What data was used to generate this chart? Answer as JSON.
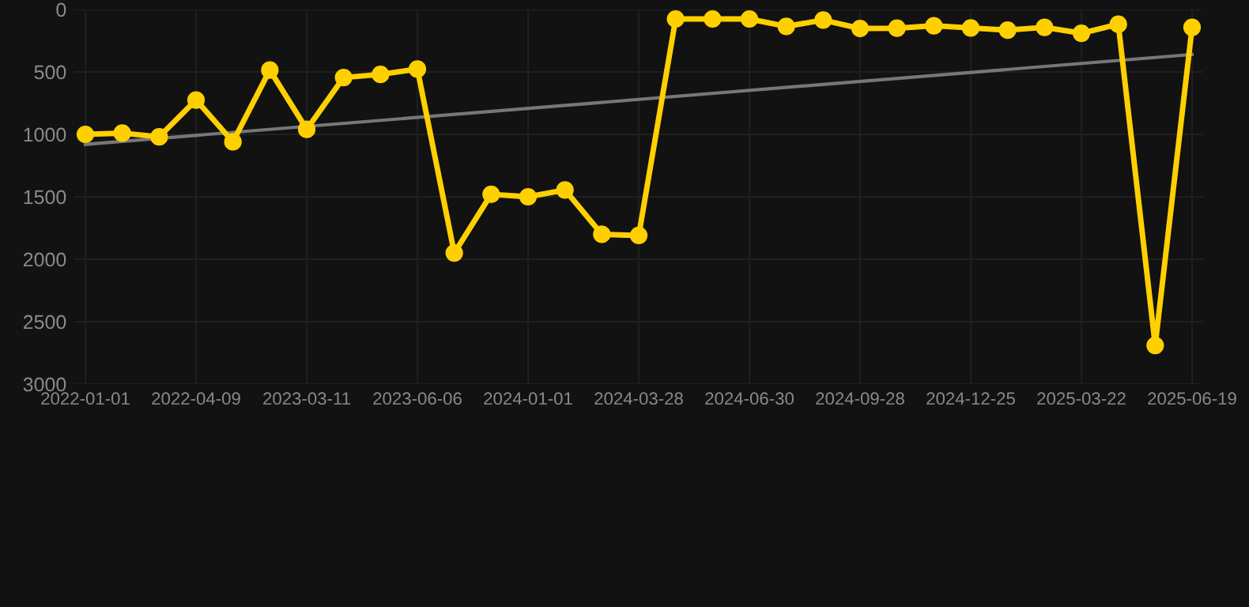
{
  "chart_data": {
    "type": "line",
    "categories": [
      "2022-01-01",
      null,
      null,
      "2022-04-09",
      null,
      null,
      "2023-03-11",
      null,
      null,
      "2023-06-06",
      null,
      null,
      "2024-01-01",
      null,
      null,
      "2024-03-28",
      null,
      null,
      "2024-06-30",
      null,
      null,
      "2024-09-28",
      null,
      null,
      "2024-12-25",
      null,
      null,
      "2025-03-22",
      null,
      null,
      "2025-06-19"
    ],
    "series": [
      {
        "color": "#ffd000",
        "marker": "circle",
        "values": [
          1000,
          990,
          1020,
          725,
          1060,
          485,
          960,
          545,
          520,
          477,
          1950,
          1480,
          1500,
          1445,
          1800,
          1810,
          76,
          76,
          76,
          135,
          85,
          152,
          150,
          130,
          148,
          165,
          143,
          190,
          118,
          2690,
          143
        ]
      },
      {
        "type": "line",
        "color": "#777777",
        "marker": "none",
        "values": [
          1080,
          null,
          null,
          null,
          null,
          null,
          null,
          null,
          null,
          null,
          null,
          null,
          null,
          null,
          null,
          null,
          null,
          null,
          null,
          null,
          null,
          null,
          null,
          null,
          null,
          null,
          null,
          null,
          null,
          null,
          360
        ]
      }
    ],
    "ylim": [
      3000,
      0
    ],
    "yticks": [
      0,
      500,
      1000,
      1500,
      2000,
      2500,
      3000
    ],
    "grid": true
  }
}
